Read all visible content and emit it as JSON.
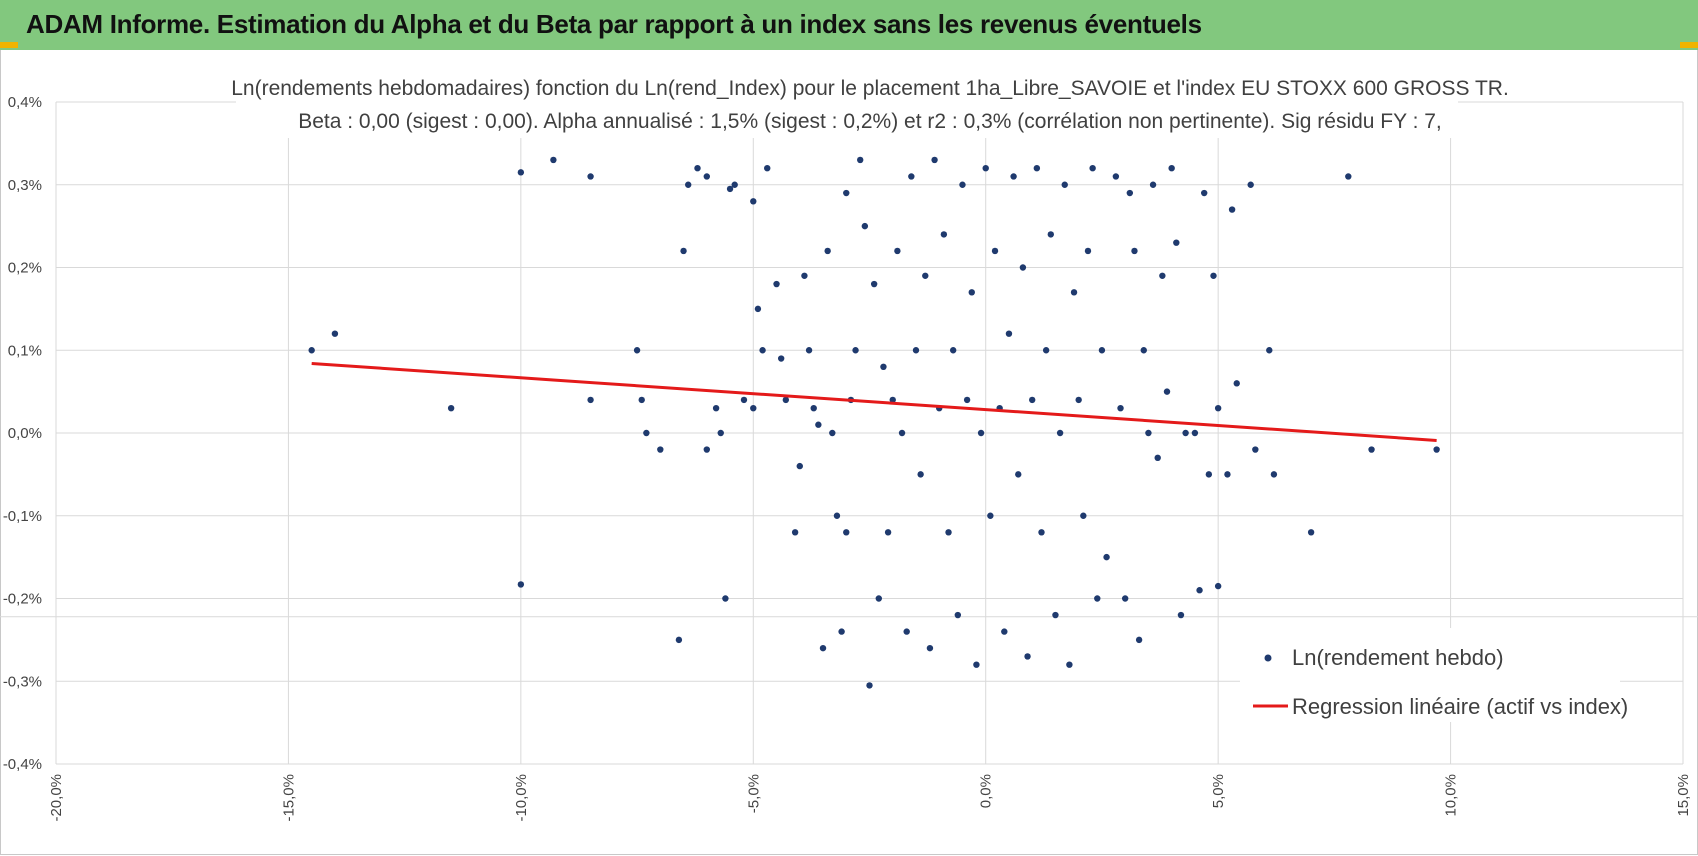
{
  "banner": {
    "title": "ADAM Informe. Estimation du Alpha et du Beta par rapport à un index sans les revenus éventuels",
    "color": "#82c87e"
  },
  "chart_data": {
    "type": "scatter",
    "title_line1": "Ln(rendements hebdomadaires) fonction du Ln(rend_Index) pour le placement 1ha_Libre_SAVOIE et l'index EU STOXX 600 GROSS TR.",
    "title_line2": "Beta : 0,00 (sigest : 0,00).  Alpha annualisé : 1,5% (sigest : 0,2%) et r2 : 0,3% (corrélation non pertinente). Sig résidu FY : 7,",
    "xlim": [
      -20,
      15
    ],
    "ylim": [
      -0.4,
      0.4
    ],
    "x_ticks": [
      -20,
      -15,
      -10,
      -5,
      0,
      5,
      10,
      15
    ],
    "x_tick_labels": [
      "-20,0%",
      "-15,0%",
      "-10,0%",
      "-5,0%",
      "0,0%",
      "5,0%",
      "10,0%",
      "15,0%"
    ],
    "y_ticks": [
      0.4,
      0.3,
      0.2,
      0.1,
      0.0,
      -0.1,
      -0.2,
      -0.3,
      -0.4
    ],
    "y_tick_labels": [
      "0,4%",
      "0,3%",
      "0,2%",
      "0,1%",
      "0,0%",
      "-0,1%",
      "-0,2%",
      "-0,3%",
      "-0,4%"
    ],
    "grid": true,
    "series": [
      {
        "name": "Ln(rendement hebdo)",
        "kind": "points",
        "color": "#1f3a6e",
        "points": [
          [
            -14.5,
            0.1
          ],
          [
            -14.0,
            0.12
          ],
          [
            -11.5,
            0.03
          ],
          [
            -10.0,
            0.315
          ],
          [
            -10.0,
            -0.183
          ],
          [
            -9.3,
            0.33
          ],
          [
            -8.5,
            0.31
          ],
          [
            -8.5,
            0.04
          ],
          [
            -7.5,
            0.1
          ],
          [
            -7.4,
            0.04
          ],
          [
            -7.3,
            0.0
          ],
          [
            -7.0,
            -0.02
          ],
          [
            -6.6,
            -0.25
          ],
          [
            -6.5,
            0.22
          ],
          [
            -6.4,
            0.3
          ],
          [
            -6.2,
            0.32
          ],
          [
            -6.0,
            0.31
          ],
          [
            -6.0,
            -0.02
          ],
          [
            -5.8,
            0.03
          ],
          [
            -5.7,
            0.0
          ],
          [
            -5.6,
            -0.2
          ],
          [
            -5.5,
            0.295
          ],
          [
            -5.4,
            0.3
          ],
          [
            -5.2,
            0.04
          ],
          [
            -5.0,
            0.28
          ],
          [
            -5.0,
            0.03
          ],
          [
            -4.9,
            0.15
          ],
          [
            -4.8,
            0.1
          ],
          [
            -4.7,
            0.32
          ],
          [
            -4.5,
            0.18
          ],
          [
            -4.4,
            0.09
          ],
          [
            -4.3,
            0.04
          ],
          [
            -4.1,
            -0.12
          ],
          [
            -4.0,
            -0.04
          ],
          [
            -3.9,
            0.19
          ],
          [
            -3.8,
            0.1
          ],
          [
            -3.7,
            0.03
          ],
          [
            -3.6,
            0.01
          ],
          [
            -3.5,
            -0.26
          ],
          [
            -3.4,
            0.22
          ],
          [
            -3.3,
            0.0
          ],
          [
            -3.2,
            -0.1
          ],
          [
            -3.1,
            -0.24
          ],
          [
            -3.0,
            0.29
          ],
          [
            -3.0,
            -0.12
          ],
          [
            -2.9,
            0.04
          ],
          [
            -2.8,
            0.1
          ],
          [
            -2.7,
            0.33
          ],
          [
            -2.6,
            0.25
          ],
          [
            -2.5,
            -0.305
          ],
          [
            -2.4,
            0.18
          ],
          [
            -2.3,
            -0.2
          ],
          [
            -2.2,
            0.08
          ],
          [
            -2.1,
            -0.12
          ],
          [
            -2.0,
            0.04
          ],
          [
            -1.9,
            0.22
          ],
          [
            -1.8,
            0.0
          ],
          [
            -1.7,
            -0.24
          ],
          [
            -1.6,
            0.31
          ],
          [
            -1.5,
            0.1
          ],
          [
            -1.4,
            -0.05
          ],
          [
            -1.3,
            0.19
          ],
          [
            -1.2,
            -0.26
          ],
          [
            -1.1,
            0.33
          ],
          [
            -1.0,
            0.03
          ],
          [
            -0.9,
            0.24
          ],
          [
            -0.8,
            -0.12
          ],
          [
            -0.7,
            0.1
          ],
          [
            -0.6,
            -0.22
          ],
          [
            -0.5,
            0.3
          ],
          [
            -0.4,
            0.04
          ],
          [
            -0.3,
            0.17
          ],
          [
            -0.2,
            -0.28
          ],
          [
            -0.1,
            0.0
          ],
          [
            0.0,
            0.32
          ],
          [
            0.1,
            -0.1
          ],
          [
            0.2,
            0.22
          ],
          [
            0.3,
            0.03
          ],
          [
            0.4,
            -0.24
          ],
          [
            0.5,
            0.12
          ],
          [
            0.6,
            0.31
          ],
          [
            0.7,
            -0.05
          ],
          [
            0.8,
            0.2
          ],
          [
            0.9,
            -0.27
          ],
          [
            1.0,
            0.04
          ],
          [
            1.1,
            0.32
          ],
          [
            1.2,
            -0.12
          ],
          [
            1.3,
            0.1
          ],
          [
            1.4,
            0.24
          ],
          [
            1.5,
            -0.22
          ],
          [
            1.6,
            0.0
          ],
          [
            1.7,
            0.3
          ],
          [
            1.8,
            -0.28
          ],
          [
            1.9,
            0.17
          ],
          [
            2.0,
            0.04
          ],
          [
            2.1,
            -0.1
          ],
          [
            2.2,
            0.22
          ],
          [
            2.3,
            0.32
          ],
          [
            2.4,
            -0.2
          ],
          [
            2.5,
            0.1
          ],
          [
            2.6,
            -0.15
          ],
          [
            2.8,
            0.31
          ],
          [
            2.9,
            0.03
          ],
          [
            3.0,
            -0.2
          ],
          [
            3.1,
            0.29
          ],
          [
            3.2,
            0.22
          ],
          [
            3.3,
            -0.25
          ],
          [
            3.4,
            0.1
          ],
          [
            3.5,
            0.0
          ],
          [
            3.6,
            0.3
          ],
          [
            3.7,
            -0.03
          ],
          [
            3.8,
            0.19
          ],
          [
            3.9,
            0.05
          ],
          [
            4.0,
            0.32
          ],
          [
            4.1,
            0.23
          ],
          [
            4.2,
            -0.22
          ],
          [
            4.3,
            0.0
          ],
          [
            4.5,
            0.0
          ],
          [
            4.6,
            -0.19
          ],
          [
            4.7,
            0.29
          ],
          [
            4.8,
            -0.05
          ],
          [
            4.9,
            0.19
          ],
          [
            5.0,
            0.03
          ],
          [
            5.0,
            -0.185
          ],
          [
            5.2,
            -0.05
          ],
          [
            5.3,
            0.27
          ],
          [
            5.4,
            0.06
          ],
          [
            5.7,
            0.3
          ],
          [
            5.8,
            -0.02
          ],
          [
            6.1,
            0.1
          ],
          [
            6.2,
            -0.05
          ],
          [
            7.0,
            -0.12
          ],
          [
            7.8,
            0.31
          ],
          [
            8.3,
            -0.02
          ],
          [
            9.7,
            -0.02
          ]
        ]
      },
      {
        "name": "Regression linéaire (actif vs index)",
        "kind": "line",
        "color": "#e41a1a",
        "x": [
          -14.5,
          9.7
        ],
        "y": [
          0.084,
          -0.009
        ]
      }
    ],
    "legend": {
      "position": "bottom-right",
      "entries": [
        "Ln(rendement hebdo)",
        "Regression linéaire (actif vs index)"
      ]
    }
  }
}
